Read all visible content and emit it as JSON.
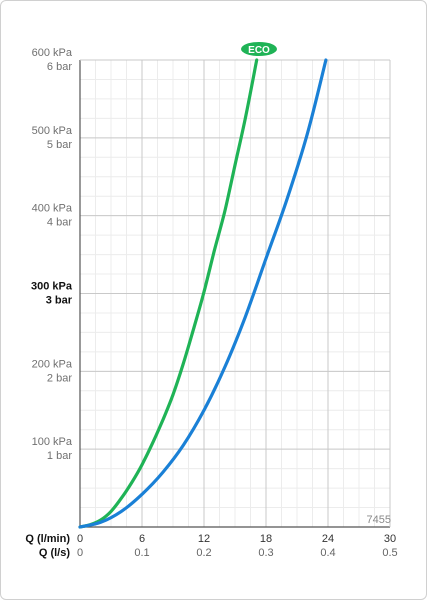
{
  "chart_data": {
    "type": "line",
    "title": "",
    "xlabel": "",
    "ylabel": "",
    "xlim": [
      0,
      30
    ],
    "ylim": [
      0,
      600
    ],
    "grid": true,
    "badge": "ECO",
    "code": "7455",
    "y_ticks": [
      {
        "value": 0,
        "kpa": "",
        "bar": ""
      },
      {
        "value": 100,
        "kpa": "100 kPa",
        "bar": "1 bar"
      },
      {
        "value": 200,
        "kpa": "200 kPa",
        "bar": "2 bar"
      },
      {
        "value": 300,
        "kpa": "300 kPa",
        "bar": "3 bar",
        "bold": true
      },
      {
        "value": 400,
        "kpa": "400 kPa",
        "bar": "4 bar"
      },
      {
        "value": 500,
        "kpa": "500 kPa",
        "bar": "5 bar"
      },
      {
        "value": 600,
        "kpa": "600 kPa",
        "bar": "6 bar"
      }
    ],
    "x_axis_rows": [
      {
        "label": "Q (l/min)",
        "ticks": [
          {
            "x": 0,
            "text": "0"
          },
          {
            "x": 6,
            "text": "6"
          },
          {
            "x": 12,
            "text": "12"
          },
          {
            "x": 18,
            "text": "18"
          },
          {
            "x": 24,
            "text": "24"
          },
          {
            "x": 30,
            "text": "30"
          }
        ]
      },
      {
        "label": "Q (l/s)",
        "ticks": [
          {
            "x": 0,
            "text": "0"
          },
          {
            "x": 6,
            "text": "0.1"
          },
          {
            "x": 12,
            "text": "0.2"
          },
          {
            "x": 18,
            "text": "0.3"
          },
          {
            "x": 24,
            "text": "0.4"
          },
          {
            "x": 30,
            "text": "0.5"
          }
        ]
      }
    ],
    "series": [
      {
        "color": "#1fb356",
        "x": [
          0,
          1,
          2,
          3,
          4,
          5,
          6,
          7,
          8,
          9,
          10,
          11,
          12,
          13,
          14,
          15,
          16,
          17.1
        ],
        "y": [
          0,
          3,
          9,
          20,
          37,
          57,
          80,
          107,
          137,
          170,
          210,
          255,
          302,
          355,
          405,
          465,
          525,
          600
        ]
      },
      {
        "color": "#1a80d6",
        "x": [
          0,
          2,
          4,
          6,
          8,
          10,
          12,
          14,
          16,
          18,
          20,
          22,
          23.8
        ],
        "y": [
          0,
          6,
          20,
          42,
          70,
          105,
          150,
          205,
          270,
          345,
          420,
          505,
          600
        ]
      }
    ]
  }
}
